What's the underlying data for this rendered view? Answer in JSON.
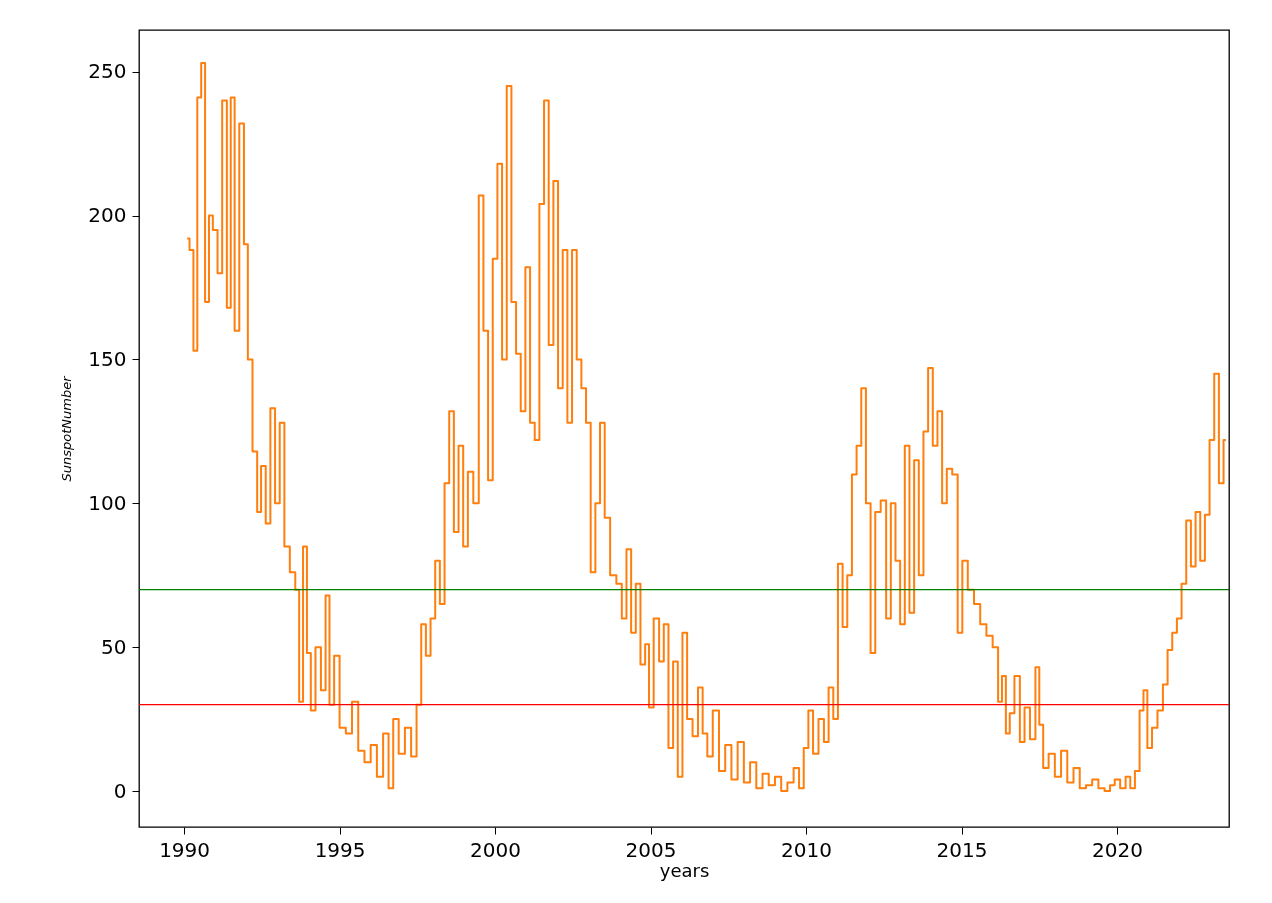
{
  "chart_data": {
    "type": "step",
    "xlabel": "years",
    "ylabel": "SunspotNumber",
    "xlim": [
      1988.55,
      2023.6
    ],
    "ylim": [
      -12.5,
      264.5
    ],
    "xticks": [
      1990,
      1995,
      2000,
      2005,
      2010,
      2015,
      2020
    ],
    "yticks": [
      0,
      50,
      100,
      150,
      200,
      250
    ],
    "grid": false,
    "x": [
      1990.1,
      1990.25,
      1990.35,
      1990.5,
      1990.6,
      1990.75,
      1990.85,
      1991.0,
      1991.15,
      1991.3,
      1991.45,
      1991.55,
      1991.7,
      1991.85,
      1992.0,
      1992.1,
      1992.3,
      1992.4,
      1992.55,
      1992.7,
      1992.85,
      1993.0,
      1993.15,
      1993.3,
      1993.5,
      1993.65,
      1993.75,
      1993.9,
      1994.0,
      1994.15,
      1994.3,
      1994.5,
      1994.6,
      1994.75,
      1994.9,
      1995.1,
      1995.3,
      1995.5,
      1995.7,
      1995.9,
      1996.1,
      1996.3,
      1996.5,
      1996.65,
      1996.8,
      1997.0,
      1997.2,
      1997.4,
      1997.55,
      1997.7,
      1997.85,
      1998.0,
      1998.15,
      1998.3,
      1998.45,
      1998.6,
      1998.75,
      1998.9,
      1999.05,
      1999.2,
      1999.4,
      1999.55,
      1999.7,
      1999.85,
      2000.0,
      2000.15,
      2000.3,
      2000.45,
      2000.6,
      2000.75,
      2000.9,
      2001.05,
      2001.2,
      2001.35,
      2001.5,
      2001.65,
      2001.8,
      2001.95,
      2002.1,
      2002.25,
      2002.4,
      2002.55,
      2002.7,
      2002.85,
      2003.0,
      2003.15,
      2003.3,
      2003.45,
      2003.6,
      2003.8,
      2004.0,
      2004.15,
      2004.3,
      2004.45,
      2004.6,
      2004.75,
      2004.9,
      2005.0,
      2005.2,
      2005.35,
      2005.5,
      2005.65,
      2005.8,
      2005.95,
      2006.1,
      2006.25,
      2006.45,
      2006.6,
      2006.75,
      2006.9,
      2007.1,
      2007.3,
      2007.5,
      2007.7,
      2007.9,
      2008.1,
      2008.3,
      2008.5,
      2008.7,
      2008.9,
      2009.1,
      2009.3,
      2009.5,
      2009.7,
      2009.85,
      2010.0,
      2010.15,
      2010.3,
      2010.5,
      2010.65,
      2010.8,
      2010.95,
      2011.1,
      2011.25,
      2011.4,
      2011.55,
      2011.7,
      2011.85,
      2012.0,
      2012.15,
      2012.3,
      2012.5,
      2012.65,
      2012.8,
      2012.95,
      2013.1,
      2013.25,
      2013.4,
      2013.55,
      2013.7,
      2013.85,
      2014.0,
      2014.15,
      2014.3,
      2014.45,
      2014.6,
      2014.8,
      2014.95,
      2015.1,
      2015.3,
      2015.5,
      2015.7,
      2015.9,
      2016.1,
      2016.25,
      2016.35,
      2016.5,
      2016.6,
      2016.8,
      2016.95,
      2017.1,
      2017.3,
      2017.45,
      2017.55,
      2017.7,
      2017.9,
      2018.1,
      2018.3,
      2018.5,
      2018.7,
      2018.9,
      2019.1,
      2019.3,
      2019.5,
      2019.7,
      2019.85,
      2020.0,
      2020.2,
      2020.35,
      2020.5,
      2020.65,
      2020.8,
      2020.9,
      2021.05,
      2021.2,
      2021.4,
      2021.55,
      2021.7,
      2021.85,
      2022.0,
      2022.15,
      2022.3,
      2022.45,
      2022.6,
      2022.75,
      2022.9,
      2023.05,
      2023.2,
      2023.35,
      2023.5
    ],
    "series": [
      {
        "color": "#ff7f0e",
        "values": [
          192,
          188,
          153,
          241,
          253,
          170,
          200,
          195,
          180,
          240,
          168,
          241,
          160,
          232,
          190,
          150,
          118,
          97,
          113,
          93,
          133,
          100,
          128,
          85,
          76,
          70,
          31,
          85,
          48,
          28,
          50,
          35,
          68,
          30,
          47,
          22,
          20,
          31,
          14,
          10,
          16,
          5,
          20,
          1,
          25,
          13,
          22,
          12,
          30,
          58,
          47,
          60,
          80,
          65,
          107,
          132,
          90,
          120,
          85,
          111,
          100,
          207,
          160,
          108,
          185,
          218,
          150,
          245,
          170,
          152,
          132,
          182,
          128,
          122,
          204,
          240,
          155,
          212,
          140,
          188,
          128,
          188,
          150,
          140,
          128,
          76,
          100,
          128,
          95,
          75,
          72,
          60,
          84,
          55,
          72,
          44,
          51,
          29,
          60,
          45,
          58,
          15,
          45,
          5,
          55,
          25,
          19,
          36,
          20,
          12,
          28,
          7,
          16,
          4,
          17,
          3,
          10,
          1,
          6,
          2,
          5,
          0,
          3,
          8,
          1,
          15,
          28,
          13,
          25,
          17,
          36,
          25,
          79,
          57,
          75,
          110,
          120,
          140,
          100,
          48,
          97,
          101,
          60,
          100,
          80,
          58,
          120,
          62,
          115,
          75,
          125,
          147,
          120,
          132,
          100,
          112,
          110,
          55,
          80,
          70,
          65,
          58,
          54,
          50,
          31,
          40,
          20,
          27,
          40,
          17,
          29,
          18,
          43,
          23,
          8,
          13,
          5,
          14,
          3,
          8,
          1,
          2,
          4,
          1,
          0,
          2,
          4,
          1,
          5,
          1,
          7,
          28,
          35,
          15,
          22,
          28,
          37,
          49,
          55,
          60,
          72,
          94,
          78,
          97,
          80,
          96,
          122,
          145,
          107,
          122
        ]
      }
    ],
    "ref_lines": [
      {
        "axis": "y",
        "value": 70,
        "color": "#008000"
      },
      {
        "axis": "y",
        "value": 30,
        "color": "#ff0000"
      }
    ]
  }
}
